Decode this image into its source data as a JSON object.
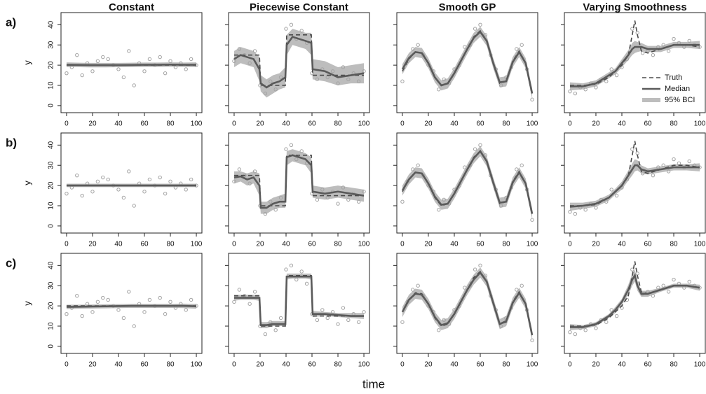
{
  "xlabel": "time",
  "ylabel": "y",
  "row_labels": [
    "a)",
    "b)",
    "c)"
  ],
  "axes": {
    "xlim": [
      -4.3,
      104.3
    ],
    "ylim": [
      -3.5,
      46
    ],
    "xticks": [
      0,
      20,
      40,
      60,
      80,
      100
    ],
    "yticks": [
      0,
      10,
      20,
      30,
      40
    ]
  },
  "colors": {
    "truth": "#4a4a4a",
    "median": "#5a5a5a",
    "band": "#bdbdbd",
    "points": "#a3a3a3",
    "frame": "#222222"
  },
  "chart_data": [
    {
      "type": "line",
      "title": "Constant",
      "x": [
        0,
        10,
        20,
        30,
        40,
        50,
        60,
        70,
        80,
        90,
        100
      ],
      "truth": [
        20,
        20,
        20,
        20,
        20,
        20,
        20,
        20,
        20,
        20,
        20
      ],
      "observations": {
        "x": [
          0,
          4,
          8,
          12,
          16,
          20,
          24,
          28,
          32,
          36,
          40,
          44,
          48,
          52,
          56,
          60,
          64,
          68,
          72,
          76,
          80,
          84,
          88,
          92,
          96,
          100
        ],
        "y": [
          16,
          19,
          25,
          15,
          21,
          17,
          22,
          24,
          23,
          20,
          18,
          14,
          27,
          10,
          21,
          17,
          23,
          20,
          24,
          16,
          22,
          19,
          21,
          18,
          23,
          20
        ]
      },
      "fits": [
        {
          "median": [
            20.2,
            20.1,
            20,
            20,
            20,
            20.1,
            20.2,
            20.2,
            20.3,
            20.2,
            20.2
          ],
          "lower": [
            19,
            19,
            18.9,
            18.9,
            19,
            19,
            19.1,
            19.1,
            19.2,
            19.1,
            19
          ],
          "upper": [
            21.4,
            21.2,
            21.1,
            21.1,
            21.1,
            21.2,
            21.3,
            21.3,
            21.4,
            21.3,
            21.4
          ]
        },
        {
          "median": [
            20,
            20,
            20,
            20,
            20,
            20,
            20,
            20,
            20,
            20,
            20
          ],
          "lower": [
            19.2,
            19.2,
            19.2,
            19.2,
            19.2,
            19.2,
            19.2,
            19.2,
            19.2,
            19.2,
            19.2
          ],
          "upper": [
            20.9,
            20.9,
            20.9,
            20.9,
            20.9,
            20.9,
            20.9,
            20.9,
            20.9,
            20.9,
            20.9
          ]
        },
        {
          "median": [
            19.5,
            19.6,
            19.7,
            19.8,
            19.9,
            20,
            20,
            20,
            20,
            20,
            19.8
          ],
          "lower": [
            18.4,
            18.6,
            18.7,
            18.8,
            18.9,
            19,
            19,
            19,
            19,
            18.9,
            18.6
          ],
          "upper": [
            20.6,
            20.6,
            20.7,
            20.8,
            20.9,
            21,
            21,
            21,
            21,
            21.1,
            21
          ]
        }
      ]
    },
    {
      "type": "line",
      "title": "Piecewise Constant",
      "x": [
        0,
        5,
        10,
        15,
        19.5,
        20.5,
        25,
        30,
        35,
        39.5,
        40.5,
        45,
        50,
        55,
        59.5,
        60.5,
        70,
        80,
        90,
        100
      ],
      "truth": [
        25,
        25,
        25,
        25,
        25,
        10,
        10,
        10,
        10,
        10,
        35,
        35,
        35,
        35,
        35,
        15,
        15,
        15,
        15,
        15
      ],
      "observations": {
        "x": [
          0,
          4,
          8,
          12,
          16,
          20,
          24,
          28,
          32,
          36,
          40,
          44,
          48,
          52,
          56,
          60,
          64,
          68,
          72,
          76,
          80,
          84,
          88,
          92,
          96,
          100
        ],
        "y": [
          22,
          28,
          25,
          21,
          27,
          10,
          6,
          12,
          8,
          14,
          38,
          40,
          33,
          37,
          31,
          16,
          13,
          18,
          14,
          17,
          11,
          19,
          13,
          16,
          12,
          17
        ]
      },
      "fits": [
        {
          "median": [
            23,
            25,
            24,
            23,
            18,
            11,
            9,
            11,
            12,
            14,
            30,
            34,
            33,
            32,
            31,
            18,
            17,
            14,
            15,
            16
          ],
          "lower": [
            19,
            21,
            20,
            19,
            12,
            7,
            4,
            6,
            8,
            9,
            25,
            30,
            29,
            28,
            25,
            13,
            12,
            10,
            11,
            11
          ],
          "upper": [
            27,
            29,
            28,
            27,
            24,
            15,
            13,
            15,
            16,
            19,
            35,
            38,
            37,
            36,
            36,
            23,
            22,
            19,
            20,
            21
          ]
        },
        {
          "median": [
            24,
            24.5,
            23,
            24,
            20,
            9,
            9,
            11,
            12,
            12,
            34,
            35,
            34,
            33,
            30,
            17,
            16,
            17,
            16,
            15
          ],
          "lower": [
            21,
            22,
            20,
            21,
            15,
            6,
            6,
            8,
            9,
            9,
            30,
            32,
            31,
            30,
            26,
            14,
            13,
            14,
            13,
            12
          ],
          "upper": [
            27,
            27,
            26,
            27,
            26,
            12,
            12,
            14,
            15,
            16,
            37,
            38,
            37,
            36,
            34,
            20,
            19,
            20,
            19,
            18
          ]
        },
        {
          "median": [
            24,
            24,
            24,
            24,
            24,
            10.5,
            10.5,
            11,
            11,
            11,
            34.5,
            34.5,
            34.5,
            34.5,
            34.5,
            16,
            16,
            15.5,
            15,
            15
          ],
          "lower": [
            22.5,
            23,
            23,
            23,
            22.5,
            9,
            9,
            10,
            10,
            10,
            33,
            33.5,
            33.5,
            33.5,
            33,
            14.5,
            15,
            14.5,
            14,
            13.5
          ],
          "upper": [
            25.5,
            25.5,
            25.5,
            25.5,
            25.5,
            12,
            12,
            12.5,
            12.5,
            12.5,
            36,
            36,
            36,
            36,
            36,
            17.5,
            17,
            16.5,
            16.5,
            16.5
          ]
        }
      ]
    },
    {
      "type": "line",
      "title": "Smooth GP",
      "x": [
        0,
        5,
        10,
        15,
        20,
        25,
        30,
        35,
        40,
        45,
        50,
        55,
        60,
        65,
        70,
        75,
        80,
        85,
        90,
        95,
        100
      ],
      "truth": [
        17,
        23,
        26.5,
        26,
        21,
        14,
        10,
        11,
        16,
        22,
        28,
        34,
        37,
        32,
        21,
        11,
        12,
        22,
        27,
        21,
        5
      ],
      "observations": {
        "x": [
          0,
          4,
          8,
          12,
          16,
          20,
          24,
          28,
          32,
          36,
          40,
          44,
          48,
          52,
          56,
          60,
          64,
          68,
          72,
          76,
          80,
          84,
          88,
          92,
          96,
          100
        ],
        "y": [
          12,
          22,
          28,
          30,
          25,
          20,
          17,
          8,
          13,
          11,
          18,
          20,
          29,
          30,
          38,
          40,
          35,
          25,
          18,
          10,
          14,
          19,
          28,
          30,
          18,
          3
        ]
      },
      "fits": [
        {
          "median": [
            18,
            23.5,
            26.5,
            26,
            21,
            14,
            10,
            11,
            16,
            22,
            28,
            33.5,
            36.5,
            32,
            21,
            11.5,
            12,
            21.5,
            26.5,
            21,
            6
          ],
          "lower": [
            15.5,
            21,
            24,
            23.5,
            18.5,
            11.5,
            7.5,
            8.5,
            13.5,
            19.5,
            25.5,
            31,
            34,
            29.5,
            18.5,
            9,
            9.5,
            19,
            24,
            18.5,
            3.5
          ],
          "upper": [
            20.5,
            26,
            29,
            28.5,
            23.5,
            16.5,
            12.5,
            13.5,
            18.5,
            24.5,
            30.5,
            36,
            39,
            34.5,
            23.5,
            14,
            14.5,
            24,
            29,
            23.5,
            8.5
          ]
        },
        {
          "median": [
            17.5,
            23,
            26.5,
            26,
            21,
            14.5,
            10.5,
            11,
            16,
            22,
            28,
            33.5,
            37,
            32,
            21.5,
            11.5,
            12,
            21.5,
            26.5,
            21,
            6
          ],
          "lower": [
            15,
            20.5,
            24,
            23.5,
            18.5,
            12,
            8,
            8.5,
            13.5,
            19.5,
            25.5,
            31,
            34.5,
            29.5,
            19,
            9,
            9.5,
            19,
            24,
            18.5,
            3.5
          ],
          "upper": [
            20,
            25.5,
            29,
            28.5,
            23.5,
            17,
            13,
            13.5,
            18.5,
            24.5,
            30.5,
            36,
            39.5,
            34.5,
            24,
            14,
            14.5,
            24,
            29,
            23.5,
            8.5
          ]
        },
        {
          "median": [
            17,
            23,
            26,
            25.5,
            21,
            14.5,
            10.5,
            11.5,
            16,
            22,
            28,
            33,
            36.5,
            32,
            21.5,
            11,
            12.5,
            21.5,
            26.5,
            21,
            5.5
          ],
          "lower": [
            14.5,
            20.5,
            23.5,
            23,
            18.5,
            12,
            8,
            9,
            13.5,
            19.5,
            25.5,
            30.5,
            34,
            29.5,
            19,
            8.5,
            10,
            19,
            24,
            18.5,
            3
          ],
          "upper": [
            19.5,
            25.5,
            28.5,
            28,
            23.5,
            17,
            13,
            14,
            18.5,
            24.5,
            30.5,
            35.5,
            39,
            34.5,
            24,
            13.5,
            15,
            24,
            29,
            23.5,
            8
          ]
        }
      ]
    },
    {
      "type": "line",
      "title": "Varying Smoothness",
      "x": [
        0,
        10,
        20,
        30,
        35,
        40,
        45,
        48,
        50,
        52,
        55,
        60,
        70,
        80,
        90,
        100
      ],
      "truth": [
        10,
        10,
        10.5,
        14,
        17,
        20,
        25,
        35,
        42,
        35,
        27,
        26,
        28,
        30,
        30,
        29
      ],
      "observations": {
        "x": [
          0,
          4,
          8,
          12,
          16,
          20,
          24,
          28,
          32,
          36,
          40,
          44,
          48,
          52,
          56,
          60,
          64,
          68,
          72,
          76,
          80,
          84,
          88,
          92,
          96,
          100
        ],
        "y": [
          7,
          6,
          9,
          8,
          11,
          9,
          13,
          12,
          18,
          15,
          19,
          23,
          38,
          36,
          26,
          27,
          25,
          29,
          30,
          27,
          33,
          31,
          29,
          32,
          30,
          29
        ]
      },
      "fits": [
        {
          "median": [
            9.5,
            9.5,
            11,
            15,
            17,
            21,
            25,
            28,
            29,
            29,
            29,
            28,
            28,
            30,
            30,
            30
          ],
          "lower": [
            7.5,
            8,
            9.5,
            13.5,
            15.5,
            19,
            22.5,
            25,
            26,
            26.5,
            27,
            26.5,
            26.5,
            28.5,
            28.5,
            28
          ],
          "upper": [
            11.5,
            11,
            12.5,
            16.5,
            18.5,
            23,
            27.5,
            31,
            32,
            31.5,
            31,
            29.5,
            29.5,
            31.5,
            31.5,
            32
          ]
        },
        {
          "median": [
            9.5,
            10,
            11,
            14,
            17,
            20,
            25,
            28,
            30,
            30,
            28,
            27,
            28,
            29,
            29,
            29
          ],
          "lower": [
            7.5,
            8.5,
            9.5,
            12.5,
            15.5,
            18,
            22.5,
            25,
            27,
            27.5,
            26,
            25.5,
            26.5,
            27.5,
            27.5,
            27
          ],
          "upper": [
            11.5,
            11.5,
            12.5,
            15.5,
            18.5,
            22,
            27.5,
            31,
            33,
            32.5,
            30,
            28.5,
            29.5,
            30.5,
            30.5,
            31
          ]
        },
        {
          "median": [
            9.5,
            9.5,
            11,
            15,
            18,
            22,
            28,
            33,
            35,
            30,
            26,
            26,
            28,
            30,
            30,
            29
          ],
          "lower": [
            8,
            8.5,
            10,
            14,
            16.5,
            20.5,
            25.5,
            30,
            32,
            27.5,
            24.5,
            24.5,
            27,
            29,
            29,
            27.5
          ],
          "upper": [
            11,
            10.5,
            12,
            16,
            19.5,
            23.5,
            30.5,
            36,
            38,
            32.5,
            27.5,
            27.5,
            29,
            31,
            31,
            30.5
          ]
        }
      ],
      "legend": {
        "corner": "bottom-right",
        "labels": [
          "Truth",
          "Median",
          "95% BCI"
        ]
      }
    }
  ]
}
